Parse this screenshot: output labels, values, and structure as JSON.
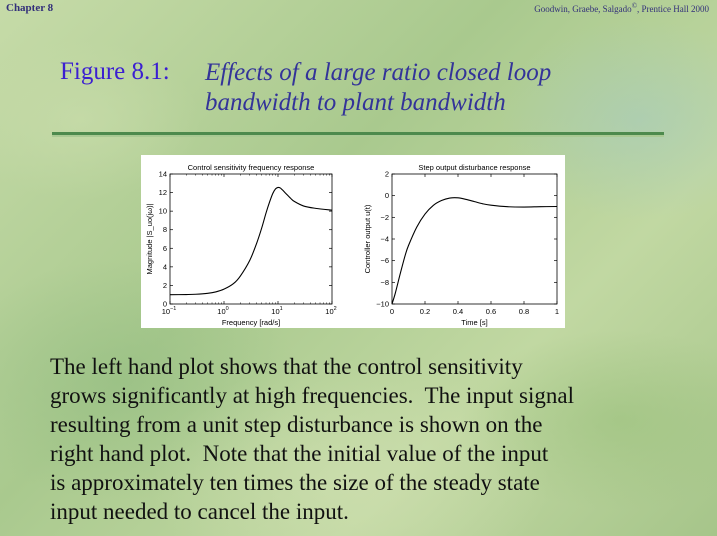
{
  "header": {
    "chapter": "Chapter 8",
    "credit_part1": "Goodwin, Graebe, Salgado",
    "credit_symbol": "©",
    "credit_part2": ", Prentice Hall 2000"
  },
  "figure": {
    "label": "Figure 8.1:",
    "title_line1": "Effects of a large ratio closed loop",
    "title_line2": "bandwidth to plant bandwidth"
  },
  "chart_data": [
    {
      "type": "line",
      "title": "Control sensitivity frequency response",
      "xlabel": "Frequency [rad/s]",
      "ylabel": "Magnitude |S_uo(jω)|",
      "x_scale": "log",
      "xlim": [
        0.1,
        100
      ],
      "ylim": [
        0,
        14
      ],
      "x_ticks": [
        0.1,
        1,
        10,
        100
      ],
      "x_tick_labels": [
        [
          "10",
          "−1"
        ],
        [
          "10",
          "0"
        ],
        [
          "10",
          "1"
        ],
        [
          "10",
          "2"
        ]
      ],
      "y_ticks": [
        0,
        2,
        4,
        6,
        8,
        10,
        12,
        14
      ],
      "y_tick_labels": [
        "0",
        "2",
        "4",
        "6",
        "8",
        "10",
        "12",
        "14"
      ],
      "x": [
        0.1,
        0.2,
        0.3,
        0.5,
        0.7,
        1,
        1.5,
        2,
        3,
        4,
        5,
        6,
        7,
        8,
        9,
        10,
        11,
        12,
        14,
        17,
        20,
        30,
        50,
        100
      ],
      "y": [
        1.0,
        1.02,
        1.05,
        1.15,
        1.3,
        1.6,
        2.2,
        3.0,
        4.7,
        6.5,
        8.2,
        9.8,
        11.0,
        11.9,
        12.4,
        12.55,
        12.5,
        12.3,
        11.9,
        11.4,
        11.05,
        10.55,
        10.3,
        10.1
      ]
    },
    {
      "type": "line",
      "title": "Step output disturbance response",
      "xlabel": "Time [s]",
      "ylabel": "Controller output u(t)",
      "xlim": [
        0,
        1
      ],
      "ylim": [
        -10,
        2
      ],
      "x_ticks": [
        0,
        0.2,
        0.4,
        0.6,
        0.8,
        1
      ],
      "x_tick_labels": [
        "0",
        "0.2",
        "0.4",
        "0.6",
        "0.8",
        "1"
      ],
      "y_ticks": [
        -10,
        -8,
        -6,
        -4,
        -2,
        0,
        2
      ],
      "y_tick_labels": [
        "−10",
        "−8",
        "−6",
        "−4",
        "−2",
        "0",
        "2"
      ],
      "x": [
        0,
        0.02,
        0.05,
        0.08,
        0.1,
        0.15,
        0.2,
        0.25,
        0.3,
        0.35,
        0.4,
        0.45,
        0.5,
        0.55,
        0.6,
        0.7,
        0.8,
        0.9,
        1.0
      ],
      "y": [
        -10,
        -9.0,
        -7.2,
        -5.5,
        -4.6,
        -2.9,
        -1.7,
        -0.9,
        -0.45,
        -0.22,
        -0.2,
        -0.35,
        -0.55,
        -0.75,
        -0.88,
        -1.02,
        -1.05,
        -1.02,
        -1.0
      ]
    }
  ],
  "body": {
    "line1": "The left hand plot shows that the control sensitivity",
    "line2": "grows significantly at high frequencies.  The input signal",
    "line3": "resulting from a unit step disturbance is shown on the",
    "line4": "right hand plot.  Note that the initial value of the input",
    "line5": "is approximately ten times the size of the steady state",
    "line6": "input needed to cancel the input."
  }
}
